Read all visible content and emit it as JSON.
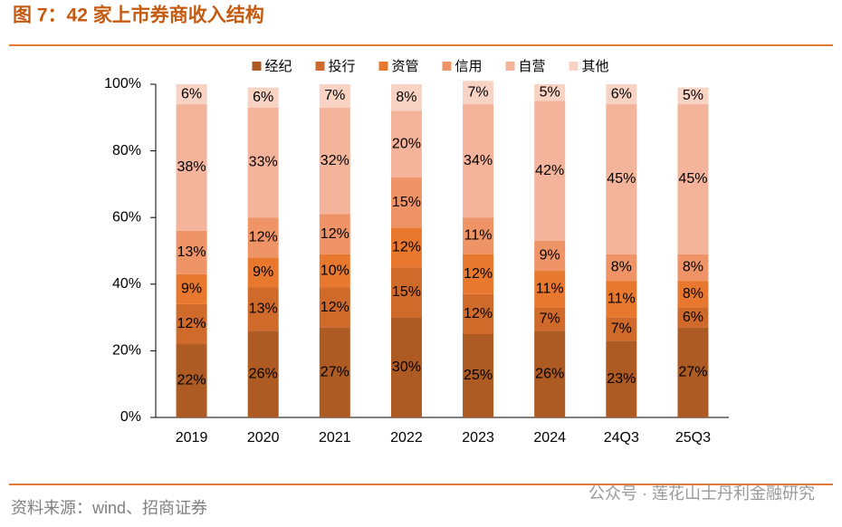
{
  "chart_data": {
    "type": "stacked_bar",
    "title": "图 7：42 家上市券商收入结构",
    "source": "资料来源：wind、招商证券",
    "watermark": "公众号 · 莲花山士丹利金融研究",
    "categories": [
      "2019",
      "2020",
      "2021",
      "2022",
      "2023",
      "2024",
      "24Q3",
      "25Q3"
    ],
    "ylim": [
      0,
      100
    ],
    "yticks": [
      {
        "value": 0,
        "label": "0%"
      },
      {
        "value": 20,
        "label": "20%"
      },
      {
        "value": 40,
        "label": "40%"
      },
      {
        "value": 60,
        "label": "60%"
      },
      {
        "value": 80,
        "label": "80%"
      },
      {
        "value": 100,
        "label": "100%"
      }
    ],
    "legend": "top",
    "series": [
      {
        "name": "经纪",
        "color": "#ad5a23",
        "values": [
          22,
          26,
          27,
          30,
          25,
          26,
          23,
          27
        ],
        "value_labels": [
          "22%",
          "26%",
          "27%",
          "30%",
          "25%",
          "26%",
          "23%",
          "27%"
        ]
      },
      {
        "name": "投行",
        "color": "#cf6a2b",
        "values": [
          12,
          13,
          12,
          15,
          12,
          7,
          7,
          6
        ],
        "value_labels": [
          "12%",
          "13%",
          "12%",
          "15%",
          "12%",
          "7%",
          "7%",
          "6%"
        ]
      },
      {
        "name": "资管",
        "color": "#e9782f",
        "values": [
          9,
          9,
          10,
          12,
          12,
          11,
          11,
          8
        ],
        "value_labels": [
          "9%",
          "9%",
          "10%",
          "12%",
          "12%",
          "11%",
          "11%",
          "8%"
        ]
      },
      {
        "name": "信用",
        "color": "#ef9467",
        "values": [
          13,
          12,
          12,
          15,
          11,
          9,
          8,
          8
        ],
        "value_labels": [
          "13%",
          "12%",
          "12%",
          "15%",
          "11%",
          "9%",
          "8%",
          "8%"
        ]
      },
      {
        "name": "自营",
        "color": "#f4b39b",
        "values": [
          38,
          33,
          32,
          20,
          34,
          42,
          45,
          45
        ],
        "value_labels": [
          "38%",
          "33%",
          "32%",
          "20%",
          "34%",
          "42%",
          "45%",
          "45%"
        ]
      },
      {
        "name": "其他",
        "color": "#f8d3c3",
        "values": [
          6,
          6,
          7,
          8,
          7,
          5,
          6,
          5
        ],
        "value_labels": [
          "6%",
          "6%",
          "7%",
          "8%",
          "7%",
          "5%",
          "6%",
          "5%"
        ]
      }
    ]
  }
}
